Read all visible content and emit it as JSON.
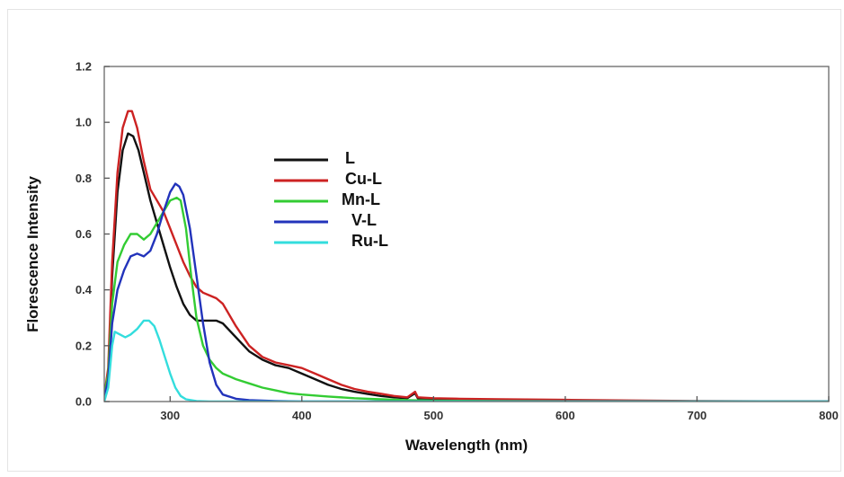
{
  "chart_data": {
    "type": "line",
    "xlabel": "Wavelength (nm)",
    "ylabel": "Florescence Intensity",
    "xlim": [
      250,
      800
    ],
    "ylim": [
      0.0,
      1.2
    ],
    "xticks": [
      300,
      400,
      500,
      600,
      700,
      800
    ],
    "xtick_labels": [
      "300",
      "400",
      "500",
      "600",
      "700",
      "800"
    ],
    "yticks": [
      0.0,
      0.2,
      0.4,
      0.6,
      0.8,
      1.0,
      1.2
    ],
    "ytick_labels": [
      "0.0",
      "0.2",
      "0.4",
      "0.6",
      "0.8",
      "1.0",
      "1.2"
    ],
    "grid": false,
    "legend_position": "upper-left-center",
    "series": [
      {
        "name": "L",
        "color": "#111111",
        "points": [
          [
            250,
            0.02
          ],
          [
            253,
            0.1
          ],
          [
            256,
            0.45
          ],
          [
            260,
            0.75
          ],
          [
            264,
            0.9
          ],
          [
            268,
            0.96
          ],
          [
            272,
            0.95
          ],
          [
            276,
            0.9
          ],
          [
            280,
            0.82
          ],
          [
            285,
            0.72
          ],
          [
            290,
            0.64
          ],
          [
            295,
            0.56
          ],
          [
            300,
            0.48
          ],
          [
            305,
            0.41
          ],
          [
            310,
            0.35
          ],
          [
            315,
            0.31
          ],
          [
            320,
            0.29
          ],
          [
            325,
            0.29
          ],
          [
            330,
            0.29
          ],
          [
            335,
            0.29
          ],
          [
            340,
            0.28
          ],
          [
            350,
            0.23
          ],
          [
            360,
            0.18
          ],
          [
            370,
            0.15
          ],
          [
            380,
            0.13
          ],
          [
            390,
            0.12
          ],
          [
            400,
            0.1
          ],
          [
            410,
            0.08
          ],
          [
            420,
            0.06
          ],
          [
            430,
            0.045
          ],
          [
            440,
            0.035
          ],
          [
            450,
            0.027
          ],
          [
            460,
            0.02
          ],
          [
            470,
            0.015
          ],
          [
            480,
            0.012
          ],
          [
            486,
            0.03
          ],
          [
            488,
            0.012
          ],
          [
            500,
            0.01
          ],
          [
            520,
            0.008
          ],
          [
            550,
            0.006
          ],
          [
            600,
            0.004
          ],
          [
            650,
            0.002
          ],
          [
            700,
            0.001
          ],
          [
            800,
            0.0
          ]
        ]
      },
      {
        "name": "Cu-L",
        "color": "#cc2222",
        "points": [
          [
            250,
            0.02
          ],
          [
            253,
            0.12
          ],
          [
            256,
            0.5
          ],
          [
            260,
            0.82
          ],
          [
            264,
            0.98
          ],
          [
            268,
            1.04
          ],
          [
            271,
            1.04
          ],
          [
            275,
            0.98
          ],
          [
            280,
            0.86
          ],
          [
            285,
            0.76
          ],
          [
            290,
            0.72
          ],
          [
            295,
            0.68
          ],
          [
            300,
            0.62
          ],
          [
            305,
            0.56
          ],
          [
            310,
            0.5
          ],
          [
            315,
            0.45
          ],
          [
            320,
            0.41
          ],
          [
            325,
            0.39
          ],
          [
            330,
            0.38
          ],
          [
            335,
            0.37
          ],
          [
            340,
            0.35
          ],
          [
            350,
            0.27
          ],
          [
            360,
            0.2
          ],
          [
            370,
            0.16
          ],
          [
            380,
            0.14
          ],
          [
            390,
            0.13
          ],
          [
            400,
            0.12
          ],
          [
            410,
            0.1
          ],
          [
            420,
            0.08
          ],
          [
            430,
            0.06
          ],
          [
            440,
            0.045
          ],
          [
            450,
            0.035
          ],
          [
            460,
            0.028
          ],
          [
            470,
            0.02
          ],
          [
            480,
            0.015
          ],
          [
            486,
            0.035
          ],
          [
            488,
            0.015
          ],
          [
            500,
            0.012
          ],
          [
            520,
            0.01
          ],
          [
            550,
            0.008
          ],
          [
            600,
            0.006
          ],
          [
            650,
            0.004
          ],
          [
            700,
            0.002
          ],
          [
            750,
            0.001
          ],
          [
            800,
            0.0
          ]
        ]
      },
      {
        "name": "Mn-L",
        "color": "#33cc33",
        "points": [
          [
            250,
            0.02
          ],
          [
            253,
            0.1
          ],
          [
            256,
            0.35
          ],
          [
            260,
            0.5
          ],
          [
            265,
            0.56
          ],
          [
            270,
            0.6
          ],
          [
            275,
            0.6
          ],
          [
            280,
            0.58
          ],
          [
            285,
            0.6
          ],
          [
            290,
            0.64
          ],
          [
            295,
            0.68
          ],
          [
            300,
            0.72
          ],
          [
            305,
            0.73
          ],
          [
            308,
            0.72
          ],
          [
            312,
            0.62
          ],
          [
            316,
            0.45
          ],
          [
            320,
            0.3
          ],
          [
            325,
            0.2
          ],
          [
            330,
            0.15
          ],
          [
            335,
            0.12
          ],
          [
            340,
            0.1
          ],
          [
            350,
            0.08
          ],
          [
            360,
            0.065
          ],
          [
            370,
            0.05
          ],
          [
            380,
            0.04
          ],
          [
            390,
            0.03
          ],
          [
            400,
            0.025
          ],
          [
            420,
            0.018
          ],
          [
            440,
            0.012
          ],
          [
            460,
            0.008
          ],
          [
            480,
            0.005
          ],
          [
            500,
            0.003
          ],
          [
            550,
            0.002
          ],
          [
            600,
            0.001
          ],
          [
            800,
            0.0
          ]
        ]
      },
      {
        "name": "V-L",
        "color": "#2233bb",
        "points": [
          [
            250,
            0.01
          ],
          [
            253,
            0.08
          ],
          [
            256,
            0.28
          ],
          [
            260,
            0.4
          ],
          [
            265,
            0.47
          ],
          [
            270,
            0.52
          ],
          [
            275,
            0.53
          ],
          [
            280,
            0.52
          ],
          [
            285,
            0.54
          ],
          [
            290,
            0.6
          ],
          [
            295,
            0.68
          ],
          [
            300,
            0.75
          ],
          [
            304,
            0.78
          ],
          [
            307,
            0.77
          ],
          [
            310,
            0.74
          ],
          [
            315,
            0.62
          ],
          [
            320,
            0.45
          ],
          [
            325,
            0.28
          ],
          [
            330,
            0.14
          ],
          [
            335,
            0.06
          ],
          [
            340,
            0.025
          ],
          [
            350,
            0.01
          ],
          [
            360,
            0.005
          ],
          [
            380,
            0.002
          ],
          [
            400,
            0.0
          ],
          [
            800,
            0.0
          ]
        ]
      },
      {
        "name": "Ru-L",
        "color": "#33dddd",
        "points": [
          [
            250,
            0.0
          ],
          [
            253,
            0.05
          ],
          [
            256,
            0.2
          ],
          [
            258,
            0.25
          ],
          [
            262,
            0.24
          ],
          [
            266,
            0.23
          ],
          [
            270,
            0.24
          ],
          [
            275,
            0.26
          ],
          [
            280,
            0.29
          ],
          [
            284,
            0.29
          ],
          [
            288,
            0.27
          ],
          [
            292,
            0.22
          ],
          [
            296,
            0.16
          ],
          [
            300,
            0.1
          ],
          [
            304,
            0.05
          ],
          [
            308,
            0.02
          ],
          [
            312,
            0.008
          ],
          [
            320,
            0.002
          ],
          [
            330,
            0.0
          ],
          [
            800,
            0.0
          ]
        ]
      }
    ]
  }
}
